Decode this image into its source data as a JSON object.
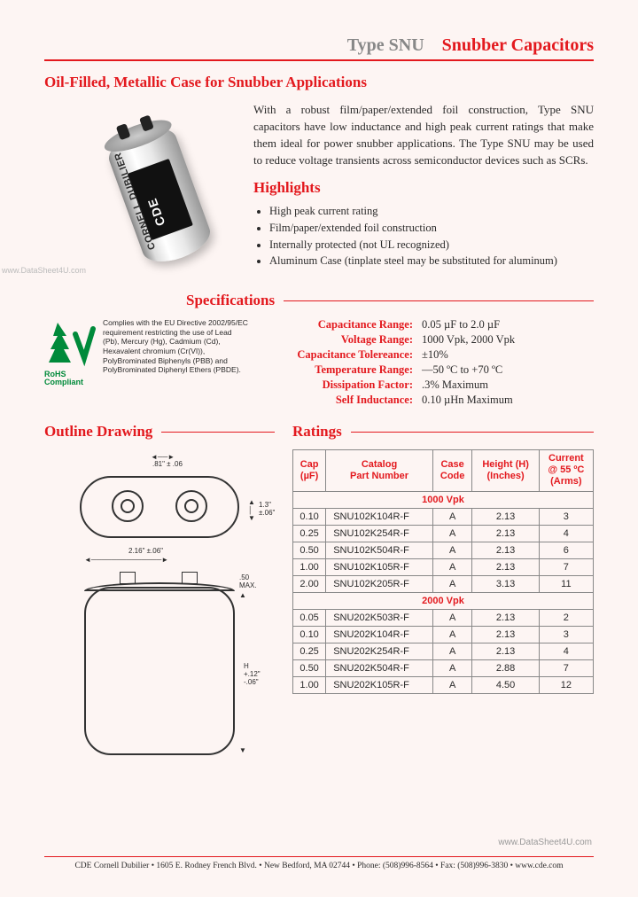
{
  "header": {
    "title_left": "Type SNU",
    "title_right": "Snubber Capacitors"
  },
  "subtitle": "Oil-Filled, Metallic Case for Snubber Applications",
  "capacitor_label": {
    "brand": "CORNELL DUBILIER",
    "logo": "CDE"
  },
  "intro": "With a robust film/paper/extended foil construction, Type SNU capacitors have low inductance and high peak current ratings that make them ideal for power snubber applications. The Type SNU may be used to reduce voltage transients across semiconductor devices such as SCRs.",
  "highlights": {
    "heading": "Highlights",
    "items": [
      "High peak current rating",
      "Film/paper/extended foil construction",
      "Internally protected (not UL recognized)",
      "Aluminum Case (tinplate steel may be substituted for aluminum)"
    ]
  },
  "sections": {
    "specifications": "Specifications",
    "outline": "Outline Drawing",
    "ratings": "Ratings"
  },
  "rohs": {
    "label": "RoHS\nCompliant",
    "text": "Complies with the EU Directive 2002/95/EC requirement restricting the use of Lead (Pb), Mercury (Hg), Cadmium (Cd), Hexavalent chromium (Cr(VI)), PolyBrominated Biphenyls (PBB) and PolyBrominated Diphenyl Ethers (PBDE)."
  },
  "specs": [
    {
      "label": "Capacitance Range:",
      "value": "0.05 µF to 2.0 µF"
    },
    {
      "label": "Voltage Range:",
      "value": "1000 Vpk, 2000 Vpk"
    },
    {
      "label": "Capacitance Tolereance:",
      "value": "±10%"
    },
    {
      "label": "Temperature Range:",
      "value": "—50 ºC to +70 ºC"
    },
    {
      "label": "Dissipation Factor:",
      "value": ".3% Maximum"
    },
    {
      "label": "Self Inductance:",
      "value": "0.10 µHn Maximum"
    }
  ],
  "drawing": {
    "top_spacing": ".81\" ± .06",
    "top_height": "1.3\" ±.06\"",
    "width": "2.16\" ±.06\"",
    "term_height": ".50 MAX.",
    "height": "H +.12\" -.06\""
  },
  "ratings": {
    "columns": [
      "Cap (µF)",
      "Catalog Part Number",
      "Case Code",
      "Height (H) (Inches)",
      "Current @ 55 ºC (Arms)"
    ],
    "group1": "1000 Vpk",
    "rows1": [
      [
        "0.10",
        "SNU102K104R-F",
        "A",
        "2.13",
        "3"
      ],
      [
        "0.25",
        "SNU102K254R-F",
        "A",
        "2.13",
        "4"
      ],
      [
        "0.50",
        "SNU102K504R-F",
        "A",
        "2.13",
        "6"
      ],
      [
        "1.00",
        "SNU102K105R-F",
        "A",
        "2.13",
        "7"
      ],
      [
        "2.00",
        "SNU102K205R-F",
        "A",
        "3.13",
        "11"
      ]
    ],
    "group2": "2000 Vpk",
    "rows2": [
      [
        "0.05",
        "SNU202K503R-F",
        "A",
        "2.13",
        "2"
      ],
      [
        "0.10",
        "SNU202K104R-F",
        "A",
        "2.13",
        "3"
      ],
      [
        "0.25",
        "SNU202K254R-F",
        "A",
        "2.13",
        "4"
      ],
      [
        "0.50",
        "SNU202K504R-F",
        "A",
        "2.88",
        "7"
      ],
      [
        "1.00",
        "SNU202K105R-F",
        "A",
        "4.50",
        "12"
      ]
    ]
  },
  "watermark_left": "www.DataSheet4U.com",
  "watermark_right": "www.DataSheet4U.com",
  "footer": "CDE Cornell Dubilier • 1605 E. Rodney French Blvd. • New Bedford, MA 02744 • Phone: (508)996-8564 • Fax: (508)996-3830 • www.cde.com",
  "colors": {
    "red": "#e3191e",
    "bg": "#fdf5f3",
    "text": "#2a2a2a",
    "green": "#008a3a"
  }
}
